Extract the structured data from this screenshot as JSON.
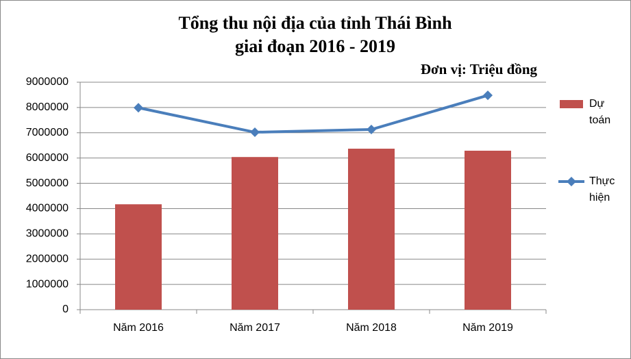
{
  "chart_data": {
    "type": "combo",
    "title": [
      "Tổng thu nội địa của tỉnh Thái Bình",
      "giai đoạn 2016 - 2019"
    ],
    "unit_label": "Đơn vị: Triệu đồng",
    "categories": [
      "Năm 2016",
      "Năm 2017",
      "Năm 2018",
      "Năm 2019"
    ],
    "series": [
      {
        "name": "Dự toán",
        "type": "bar",
        "color": "#c0504d",
        "values": [
          4170000,
          6040000,
          6370000,
          6290000
        ]
      },
      {
        "name": "Thực hiện",
        "type": "line",
        "color": "#4a7ebb",
        "values": [
          7990000,
          7020000,
          7130000,
          8480000
        ]
      }
    ],
    "ylim": [
      0,
      9000000
    ],
    "yticks": [
      0,
      1000000,
      2000000,
      3000000,
      4000000,
      5000000,
      6000000,
      7000000,
      8000000,
      9000000
    ],
    "grid": true
  }
}
